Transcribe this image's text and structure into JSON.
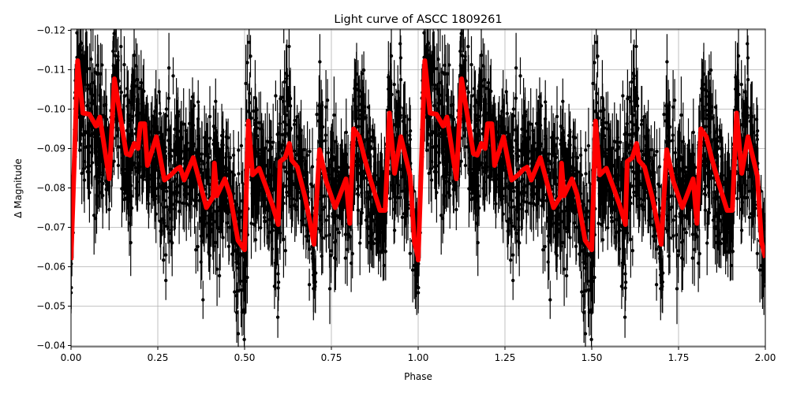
{
  "chart_data": {
    "type": "scatter",
    "title": "Light curve of ASCC 1809261",
    "xlabel": "Phase",
    "ylabel": "Δ Magnitude",
    "xlim": [
      0,
      2
    ],
    "ylim": [
      -0.1203,
      -0.0397
    ],
    "y_inverted": false,
    "grid": true,
    "x_ticks": [
      "0.00",
      "0.25",
      "0.50",
      "0.75",
      "1.00",
      "1.25",
      "1.50",
      "1.75",
      "2.00"
    ],
    "y_ticks": [
      "−0.12",
      "−0.11",
      "−0.10",
      "−0.09",
      "−0.08",
      "−0.07",
      "−0.06",
      "−0.05",
      "−0.04"
    ],
    "colors": {
      "points": "#000000",
      "model": "#ff0000",
      "grid": "#b0b0b0"
    },
    "series": [
      {
        "kind": "errorbar-points",
        "description_of_marks": "dense black points with vertical error bars, phase-folded, repeated over two cycles"
      },
      {
        "kind": "line",
        "repeat_period": 1,
        "x": [
          0,
          0.019,
          0.034,
          0.053,
          0.072,
          0.083,
          0.11,
          0.125,
          0.159,
          0.17,
          0.182,
          0.193,
          0.2,
          0.212,
          0.22,
          0.246,
          0.269,
          0.288,
          0.303,
          0.314,
          0.326,
          0.352,
          0.39,
          0.409,
          0.413,
          0.42,
          0.443,
          0.458,
          0.481,
          0.5,
          0.511,
          0.523,
          0.542,
          0.564,
          0.58,
          0.597,
          0.602,
          0.617,
          0.629,
          0.636,
          0.652,
          0.674,
          0.689,
          0.7,
          0.716,
          0.735,
          0.761,
          0.792,
          0.803,
          0.814,
          0.83,
          0.845,
          0.864,
          0.89,
          0.905,
          0.917,
          0.932,
          0.95,
          0.977,
          0.989,
          1.0
        ],
        "y": [
          -0.0617,
          -0.1123,
          -0.099,
          -0.0987,
          -0.0957,
          -0.098,
          -0.0823,
          -0.1077,
          -0.0887,
          -0.0883,
          -0.0913,
          -0.09,
          -0.0963,
          -0.0963,
          -0.0857,
          -0.093,
          -0.082,
          -0.0833,
          -0.0847,
          -0.0853,
          -0.082,
          -0.0877,
          -0.075,
          -0.0777,
          -0.0863,
          -0.078,
          -0.0823,
          -0.0783,
          -0.0667,
          -0.0643,
          -0.097,
          -0.0833,
          -0.085,
          -0.0797,
          -0.0757,
          -0.0707,
          -0.0867,
          -0.0877,
          -0.0913,
          -0.087,
          -0.0853,
          -0.0777,
          -0.071,
          -0.0657,
          -0.0897,
          -0.0817,
          -0.075,
          -0.0823,
          -0.071,
          -0.095,
          -0.093,
          -0.0877,
          -0.0817,
          -0.0743,
          -0.0743,
          -0.099,
          -0.0837,
          -0.093,
          -0.083,
          -0.0663,
          -0.0623
        ]
      }
    ]
  }
}
